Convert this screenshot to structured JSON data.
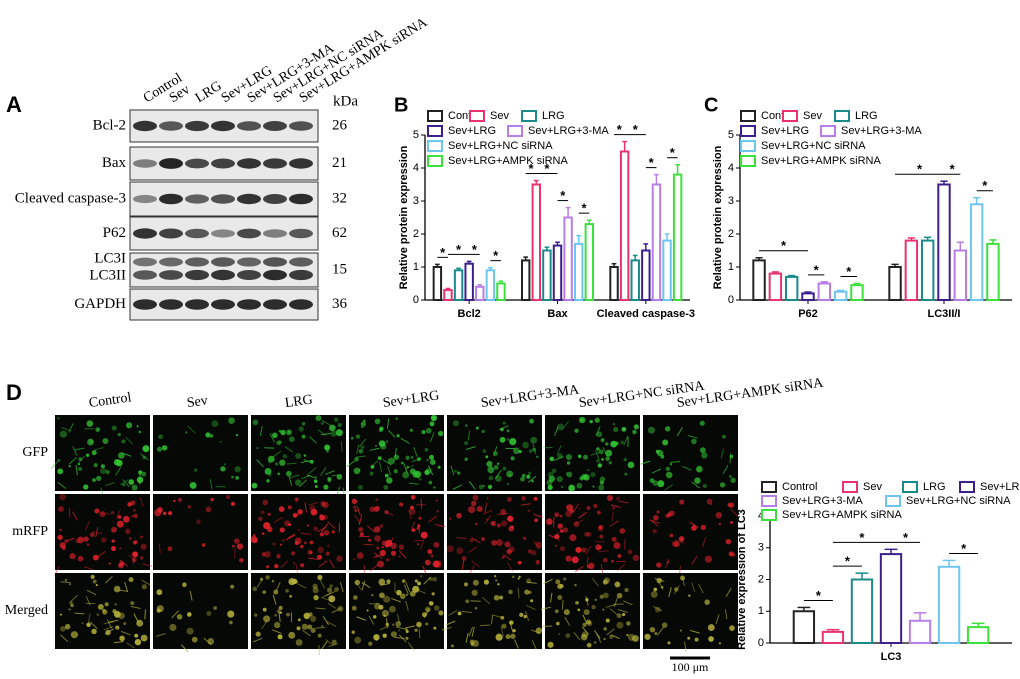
{
  "panel_labels": [
    "A",
    "B",
    "C",
    "D"
  ],
  "blot": {
    "lanes": [
      "Control",
      "Sev",
      "LRG",
      "Sev+LRG",
      "Sev+LRG+3-MA",
      "Sev+LRG+NC siRNA",
      "Sev+LRG+AMPK siRNA"
    ],
    "kda_header": "kDa",
    "rows": [
      {
        "labels": [
          "Bcl-2"
        ],
        "kda": 26
      },
      {
        "labels": [
          "Bax"
        ],
        "kda": 21
      },
      {
        "labels": [
          "Cleaved caspase-3"
        ],
        "kda": 32
      },
      {
        "labels": [
          "P62"
        ],
        "kda": 62
      },
      {
        "labels": [
          "LC3I",
          "LC3II"
        ],
        "kda": 15
      },
      {
        "labels": [
          "GAPDH"
        ],
        "kda": 36
      }
    ]
  },
  "imaging": {
    "columns": [
      "Control",
      "Sev",
      "LRG",
      "Sev+LRG",
      "Sev+LRG+3-MA",
      "Sev+LRG+NC siRNA",
      "Sev+LRG+AMPK siRNA"
    ],
    "rows": [
      "GFP",
      "mRFP",
      "Merged"
    ],
    "scale_bar": "100 μm"
  },
  "chart_data": [
    {
      "type": "bar",
      "ylabel": "Relative protein expression",
      "categories": [
        "Bcl2",
        "Bax",
        "Cleaved caspase-3"
      ],
      "ylim": [
        0,
        5
      ],
      "yticks": [
        0,
        1,
        2,
        3,
        4,
        5
      ],
      "series": [
        {
          "name": "Control",
          "color": "#222222",
          "values": [
            1.0,
            1.2,
            1.0
          ],
          "errors": [
            0.08,
            0.1,
            0.1
          ]
        },
        {
          "name": "Sev",
          "color": "#e8336e",
          "values": [
            0.3,
            3.5,
            4.5
          ],
          "errors": [
            0.05,
            0.12,
            0.3
          ]
        },
        {
          "name": "LRG",
          "color": "#1a8a8a",
          "values": [
            0.9,
            1.5,
            1.2
          ],
          "errors": [
            0.06,
            0.1,
            0.15
          ]
        },
        {
          "name": "Sev+LRG",
          "color": "#3c1f8c",
          "values": [
            1.1,
            1.65,
            1.5
          ],
          "errors": [
            0.07,
            0.1,
            0.2
          ]
        },
        {
          "name": "Sev+LRG+3-MA",
          "color": "#b87ee8",
          "values": [
            0.4,
            2.5,
            3.5
          ],
          "errors": [
            0.06,
            0.3,
            0.3
          ]
        },
        {
          "name": "Sev+LRG+NC siRNA",
          "color": "#6ec6f0",
          "values": [
            0.9,
            1.7,
            1.8
          ],
          "errors": [
            0.08,
            0.25,
            0.2
          ]
        },
        {
          "name": "Sev+LRG+AMPK siRNA",
          "color": "#3ee03e",
          "values": [
            0.5,
            2.3,
            3.8
          ],
          "errors": [
            0.07,
            0.12,
            0.3
          ]
        }
      ],
      "significance": [
        {
          "category": 0,
          "between": [
            0,
            1
          ],
          "label": "*"
        },
        {
          "category": 0,
          "between": [
            1,
            3
          ],
          "label": "*"
        },
        {
          "category": 0,
          "between": [
            3,
            4
          ],
          "label": "*"
        },
        {
          "category": 0,
          "between": [
            5,
            6
          ],
          "label": "*"
        },
        {
          "category": 1,
          "between": [
            0,
            1
          ],
          "label": "*"
        },
        {
          "category": 1,
          "between": [
            1,
            3
          ],
          "label": "*"
        },
        {
          "category": 1,
          "between": [
            3,
            4
          ],
          "label": "*"
        },
        {
          "category": 1,
          "between": [
            5,
            6
          ],
          "label": "*"
        },
        {
          "category": 2,
          "between": [
            0,
            1
          ],
          "label": "*"
        },
        {
          "category": 2,
          "between": [
            1,
            3
          ],
          "label": "*"
        },
        {
          "category": 2,
          "between": [
            3,
            4
          ],
          "label": "*"
        },
        {
          "category": 2,
          "between": [
            5,
            6
          ],
          "label": "*"
        }
      ]
    },
    {
      "type": "bar",
      "ylabel": "Relative protein expression",
      "categories": [
        "P62",
        "LC3II/I"
      ],
      "ylim": [
        0,
        5
      ],
      "yticks": [
        0,
        1,
        2,
        3,
        4,
        5
      ],
      "series": [
        {
          "name": "Control",
          "color": "#222222",
          "values": [
            1.2,
            1.0
          ],
          "errors": [
            0.08,
            0.08
          ]
        },
        {
          "name": "Sev",
          "color": "#e8336e",
          "values": [
            0.8,
            1.8
          ],
          "errors": [
            0.05,
            0.08
          ]
        },
        {
          "name": "LRG",
          "color": "#1a8a8a",
          "values": [
            0.7,
            1.8
          ],
          "errors": [
            0.04,
            0.1
          ]
        },
        {
          "name": "Sev+LRG",
          "color": "#3c1f8c",
          "values": [
            0.2,
            3.5
          ],
          "errors": [
            0.04,
            0.1
          ]
        },
        {
          "name": "Sev+LRG+3-MA",
          "color": "#b87ee8",
          "values": [
            0.5,
            1.5
          ],
          "errors": [
            0.05,
            0.25
          ]
        },
        {
          "name": "Sev+LRG+NC siRNA",
          "color": "#6ec6f0",
          "values": [
            0.25,
            2.9
          ],
          "errors": [
            0.04,
            0.2
          ]
        },
        {
          "name": "Sev+LRG+AMPK siRNA",
          "color": "#3ee03e",
          "values": [
            0.45,
            1.7
          ],
          "errors": [
            0.05,
            0.12
          ]
        }
      ],
      "significance": [
        {
          "category": 0,
          "between": [
            0,
            3
          ],
          "label": "*"
        },
        {
          "category": 0,
          "between": [
            3,
            4
          ],
          "label": "*"
        },
        {
          "category": 0,
          "between": [
            5,
            6
          ],
          "label": "*"
        },
        {
          "category": 1,
          "between": [
            0,
            3
          ],
          "label": "*"
        },
        {
          "category": 1,
          "between": [
            3,
            4
          ],
          "label": "*"
        },
        {
          "category": 1,
          "between": [
            5,
            6
          ],
          "label": "*"
        }
      ]
    },
    {
      "type": "bar",
      "ylabel": "Relative expression of LC3",
      "categories": [
        "LC3"
      ],
      "ylim": [
        0,
        4
      ],
      "yticks": [
        0,
        1,
        2,
        3,
        4
      ],
      "series": [
        {
          "name": "Control",
          "color": "#222222",
          "values": [
            1.0
          ],
          "errors": [
            0.12
          ]
        },
        {
          "name": "Sev",
          "color": "#e8336e",
          "values": [
            0.35
          ],
          "errors": [
            0.07
          ]
        },
        {
          "name": "LRG",
          "color": "#1a8a8a",
          "values": [
            2.0
          ],
          "errors": [
            0.2
          ]
        },
        {
          "name": "Sev+LRG",
          "color": "#3c1f8c",
          "values": [
            2.8
          ],
          "errors": [
            0.15
          ]
        },
        {
          "name": "Sev+LRG+3-MA",
          "color": "#b87ee8",
          "values": [
            0.7
          ],
          "errors": [
            0.25
          ]
        },
        {
          "name": "Sev+LRG+NC siRNA",
          "color": "#6ec6f0",
          "values": [
            2.4
          ],
          "errors": [
            0.2
          ]
        },
        {
          "name": "Sev+LRG+AMPK siRNA",
          "color": "#3ee03e",
          "values": [
            0.5
          ],
          "errors": [
            0.12
          ]
        }
      ],
      "significance": [
        {
          "category": 0,
          "between": [
            0,
            1
          ],
          "label": "*"
        },
        {
          "category": 0,
          "between": [
            1,
            2
          ],
          "label": "*"
        },
        {
          "category": 0,
          "between": [
            1,
            3
          ],
          "label": "*"
        },
        {
          "category": 0,
          "between": [
            3,
            4
          ],
          "label": "*"
        },
        {
          "category": 0,
          "between": [
            5,
            6
          ],
          "label": "*"
        }
      ]
    }
  ]
}
